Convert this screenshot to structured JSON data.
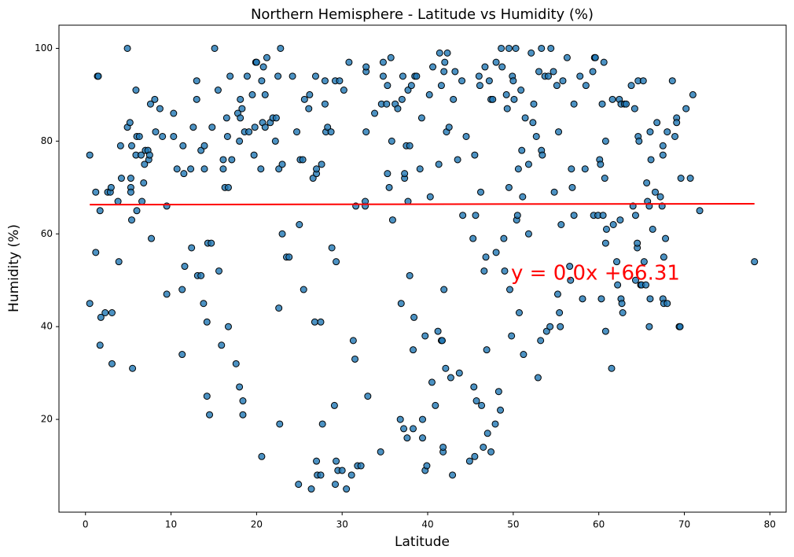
{
  "chart_data": {
    "type": "scatter",
    "title": "Northern Hemisphere - Latitude vs Humidity (%)",
    "x_label": "Latitude",
    "y_label": "Humidity (%)",
    "annotation": "y = 0.0x +66.31",
    "xlim": [
      -3.1,
      81.9
    ],
    "ylim": [
      0,
      105
    ],
    "xticks": [
      0,
      10,
      20,
      30,
      40,
      50,
      60,
      70,
      80
    ],
    "yticks": [
      20,
      40,
      60,
      80,
      100
    ],
    "color": "#1f77b4",
    "edge_color": "#000000",
    "regression": {
      "color": "#ff0000",
      "x": [
        0.5,
        78.2
      ],
      "values": [
        66.3,
        66.5
      ]
    },
    "x": [
      0.5,
      0.5,
      1.2,
      1.2,
      1.4,
      1.5,
      1.7,
      1.8,
      1.7,
      2.3,
      2.6,
      2.9,
      3,
      3.1,
      3.1,
      3.8,
      3.9,
      4.1,
      4.2,
      4.9,
      4.9,
      5.2,
      5.3,
      5.3,
      5.3,
      5.4,
      5.4,
      5.5,
      5.9,
      5.9,
      6,
      6,
      6.3,
      6.5,
      6.6,
      6.8,
      6.9,
      7,
      7.3,
      7.4,
      7.5,
      7.6,
      7.7,
      8.1,
      8.2,
      8.7,
      9,
      9.5,
      9.5,
      10.3,
      10.3,
      10.7,
      11.3,
      11.3,
      11.4,
      11.5,
      11.6,
      12.3,
      12.4,
      12.6,
      13,
      13,
      13.1,
      13.5,
      13.5,
      13.8,
      13.9,
      13.9,
      14.2,
      14.2,
      14.3,
      14.5,
      14.7,
      14.8,
      15.1,
      15.5,
      15.6,
      15.9,
      16.1,
      16.1,
      16.3,
      16.5,
      16.6,
      16.7,
      16.7,
      16.9,
      17.1,
      17.6,
      17.8,
      18,
      18,
      18.1,
      18.1,
      18.3,
      18.4,
      18.4,
      18.6,
      18.9,
      19.1,
      19.5,
      19.7,
      19.8,
      19.9,
      20,
      20.5,
      20.6,
      20.6,
      20.7,
      20.8,
      21,
      21,
      21.2,
      21.6,
      21.9,
      22.2,
      22.3,
      22.5,
      22.6,
      22.6,
      22.7,
      22.8,
      23,
      23,
      23.5,
      23.8,
      24.2,
      24.7,
      24.9,
      25,
      25.1,
      25.4,
      25.5,
      25.6,
      26.1,
      26.2,
      26.4,
      26.6,
      26.8,
      26.9,
      27,
      27,
      27,
      27.1,
      27.5,
      27.5,
      27.6,
      27.7,
      28,
      28,
      28.1,
      28.3,
      28.7,
      28.8,
      29.1,
      29.2,
      29.3,
      29.3,
      29.2,
      29.5,
      29.7,
      30,
      30.2,
      30.5,
      30.8,
      31.1,
      31.3,
      31.5,
      31.6,
      31.8,
      32.2,
      32.7,
      32.7,
      32.8,
      32.8,
      32.8,
      33,
      33.8,
      34.5,
      34.6,
      34.8,
      34.8,
      35.2,
      35.3,
      35.3,
      35.5,
      35.7,
      35.8,
      35.9,
      36.2,
      36.5,
      36.8,
      36.9,
      37,
      37.1,
      37.2,
      37.3,
      37.3,
      37.5,
      37.6,
      37.7,
      37.7,
      37.9,
      37.9,
      38.1,
      38.3,
      38.3,
      38.4,
      38.5,
      38.7,
      39.1,
      39.3,
      39.4,
      39.4,
      39.7,
      39.7,
      39.9,
      40.2,
      40.3,
      40.5,
      40.6,
      40.9,
      41.2,
      41.3,
      41.4,
      41.6,
      41.6,
      41.7,
      41.8,
      41.8,
      41.9,
      41.9,
      42,
      42.1,
      42.2,
      42.3,
      42.5,
      42.7,
      42.9,
      43,
      43.2,
      43.5,
      43.7,
      44,
      44.1,
      44.5,
      44.9,
      45.3,
      45.4,
      45.5,
      45.6,
      45.7,
      45.5,
      46,
      46.1,
      46.2,
      46.3,
      46.5,
      46.6,
      46.7,
      46.8,
      46.9,
      47,
      47.2,
      47.4,
      47.4,
      47.6,
      47.9,
      48,
      48,
      48.3,
      48.5,
      48.6,
      48.7,
      48.9,
      49,
      49.2,
      49.3,
      49.5,
      49.5,
      49.6,
      49.8,
      49.9,
      50,
      50.1,
      50.3,
      50.4,
      50.5,
      50.6,
      50.7,
      50.9,
      51,
      51.1,
      51.2,
      51.4,
      51.8,
      51.8,
      52.1,
      52.3,
      52.4,
      52.7,
      52.9,
      53,
      53.2,
      53.3,
      53.3,
      53.4,
      53.7,
      53.9,
      54.1,
      54.3,
      54.4,
      54.7,
      54.8,
      55.1,
      55.2,
      55.3,
      55.4,
      55.5,
      55.6,
      55.8,
      56.3,
      56.6,
      56.7,
      56.8,
      56.9,
      57.1,
      57.1,
      57.8,
      58.1,
      58.4,
      58.5,
      59.3,
      59.4,
      59.5,
      59.6,
      59.9,
      60.1,
      60.2,
      60.3,
      60.4,
      60.5,
      60.6,
      60.7,
      60.8,
      60.8,
      60.8,
      60.9,
      61.5,
      61.6,
      61.7,
      62.1,
      62.2,
      62.4,
      62.5,
      62.6,
      62.6,
      62.7,
      62.8,
      63,
      63.2,
      63.8,
      64,
      64.2,
      64.3,
      64.3,
      64.5,
      64.5,
      64.6,
      64.6,
      64.7,
      64.9,
      65,
      65.2,
      65.3,
      65.5,
      65.6,
      65.7,
      65.9,
      65.9,
      66,
      66,
      66.1,
      66.3,
      66.6,
      66.8,
      67.2,
      67.4,
      67.5,
      67.5,
      67.5,
      67.6,
      67.6,
      67.8,
      68,
      68,
      68.6,
      68.9,
      69.1,
      69.1,
      69.4,
      69.5,
      69.6,
      70.2,
      70.7,
      71,
      71.8,
      78.2
    ],
    "values": [
      77,
      45,
      69,
      56,
      94,
      94,
      65,
      42,
      36,
      43,
      69,
      69,
      70,
      43,
      32,
      67,
      54,
      79,
      72,
      100,
      83,
      84,
      72,
      70,
      69,
      79,
      63,
      31,
      91,
      77,
      81,
      65,
      81,
      77,
      67,
      71,
      75,
      78,
      78,
      76,
      77,
      88,
      59,
      89,
      82,
      87,
      81,
      66,
      47,
      81,
      86,
      74,
      34,
      48,
      79,
      73,
      53,
      74,
      57,
      83,
      89,
      93,
      51,
      51,
      78,
      45,
      79,
      74,
      41,
      25,
      58,
      21,
      58,
      83,
      100,
      91,
      52,
      36,
      76,
      74,
      70,
      85,
      81,
      40,
      70,
      94,
      76,
      32,
      86,
      80,
      27,
      85,
      89,
      87,
      24,
      21,
      82,
      94,
      82,
      90,
      77,
      83,
      97,
      97,
      74,
      12,
      93,
      84,
      96,
      90,
      83,
      98,
      84,
      85,
      80,
      85,
      94,
      74,
      44,
      19,
      100,
      60,
      75,
      55,
      55,
      94,
      82,
      6,
      62,
      76,
      76,
      48,
      89,
      87,
      90,
      5,
      72,
      41,
      94,
      73,
      74,
      11,
      8,
      8,
      41,
      75,
      19,
      88,
      93,
      82,
      83,
      82,
      57,
      23,
      93,
      54,
      11,
      6,
      9,
      93,
      9,
      91,
      5,
      97,
      8,
      37,
      33,
      66,
      10,
      10,
      66,
      67,
      82,
      95,
      96,
      25,
      86,
      13,
      88,
      97,
      94,
      88,
      73,
      92,
      70,
      98,
      80,
      63,
      88,
      87,
      20,
      45,
      89,
      94,
      18,
      72,
      73,
      79,
      16,
      91,
      67,
      51,
      79,
      92,
      18,
      35,
      42,
      94,
      94,
      74,
      85,
      20,
      16,
      38,
      9,
      10,
      90,
      68,
      28,
      96,
      23,
      39,
      75,
      99,
      92,
      37,
      37,
      13,
      14,
      95,
      48,
      97,
      31,
      82,
      99,
      83,
      29,
      8,
      89,
      95,
      76,
      30,
      93,
      64,
      81,
      11,
      59,
      27,
      12,
      64,
      24,
      77,
      94,
      92,
      69,
      23,
      14,
      52,
      96,
      55,
      35,
      17,
      93,
      13,
      89,
      89,
      19,
      56,
      97,
      26,
      22,
      100,
      96,
      59,
      52,
      90,
      87,
      70,
      100,
      48,
      38,
      94,
      93,
      89,
      100,
      63,
      64,
      74,
      43,
      91,
      78,
      68,
      34,
      85,
      60,
      75,
      99,
      84,
      88,
      81,
      29,
      95,
      37,
      100,
      78,
      77,
      94,
      39,
      94,
      40,
      100,
      95,
      69,
      92,
      47,
      82,
      43,
      40,
      62,
      93,
      98,
      53,
      50,
      74,
      70,
      88,
      64,
      94,
      46,
      74,
      92,
      95,
      64,
      98,
      98,
      64,
      76,
      75,
      46,
      88,
      64,
      97,
      72,
      80,
      58,
      39,
      61,
      31,
      89,
      62,
      54,
      49,
      89,
      63,
      88,
      46,
      45,
      43,
      88,
      88,
      92,
      66,
      87,
      64,
      50,
      57,
      58,
      93,
      81,
      80,
      49,
      49,
      93,
      54,
      49,
      71,
      67,
      40,
      66,
      82,
      46,
      76,
      61,
      69,
      84,
      68,
      66,
      77,
      79,
      46,
      45,
      55,
      59,
      82,
      45,
      93,
      81,
      85,
      84,
      40,
      40,
      72,
      87,
      72,
      90,
      65,
      54
    ]
  }
}
